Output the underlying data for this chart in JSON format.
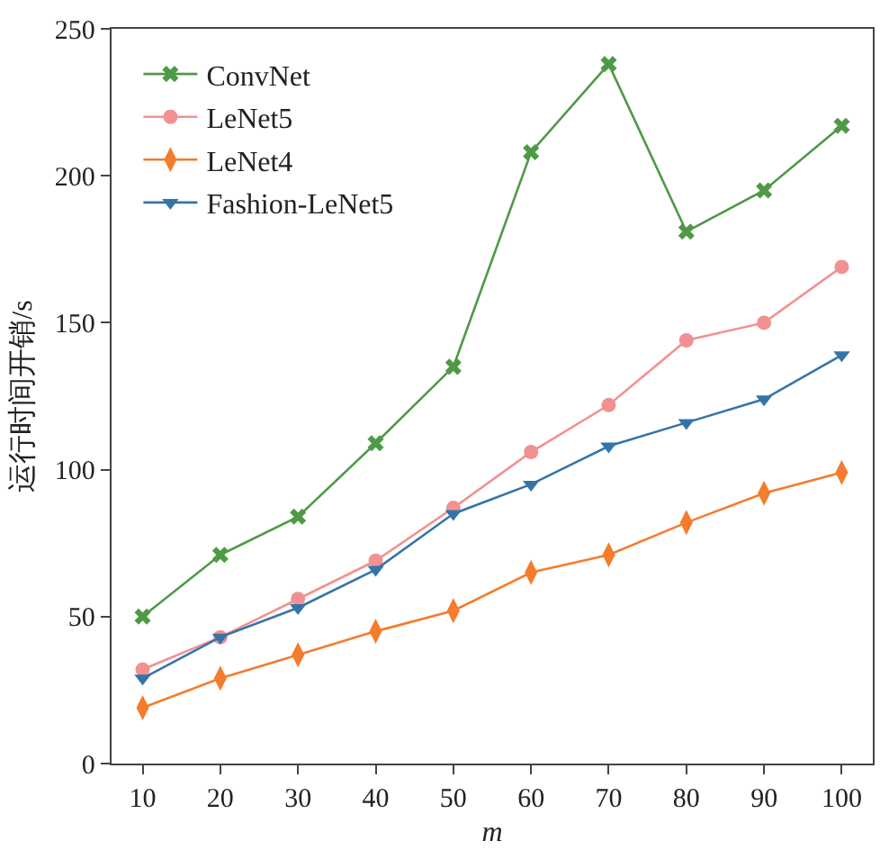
{
  "chart_data": {
    "type": "line",
    "xlabel": "m",
    "ylabel": "运行时间开销/s",
    "x": [
      10,
      20,
      30,
      40,
      50,
      60,
      70,
      80,
      90,
      100
    ],
    "xlim": [
      6,
      104
    ],
    "xticks": [
      10,
      20,
      30,
      40,
      50,
      60,
      70,
      80,
      90,
      100
    ],
    "ylim": [
      0,
      250
    ],
    "yticks": [
      0,
      50,
      100,
      150,
      200,
      250
    ],
    "grid": false,
    "legend": "top left",
    "series": [
      {
        "name": "ConvNet",
        "color": "#4e9a47",
        "marker": "cross",
        "values": [
          50,
          71,
          84,
          109,
          135,
          208,
          238,
          181,
          195,
          217
        ]
      },
      {
        "name": "LeNet5",
        "color": "#f29191",
        "marker": "circle",
        "values": [
          32,
          43,
          56,
          69,
          87,
          106,
          122,
          144,
          150,
          169
        ]
      },
      {
        "name": "LeNet4",
        "color": "#f47c2c",
        "marker": "diamond",
        "values": [
          19,
          29,
          37,
          45,
          52,
          65,
          71,
          82,
          92,
          99
        ]
      },
      {
        "name": "Fashion-LeNet5",
        "color": "#3674a8",
        "marker": "triangle",
        "values": [
          29,
          43,
          53,
          66,
          85,
          95,
          108,
          116,
          124,
          139
        ]
      }
    ]
  }
}
